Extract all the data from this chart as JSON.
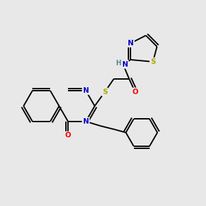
{
  "background_color": "#e8e8e8",
  "atom_colors": {
    "C": "#000000",
    "N": "#0000cc",
    "O": "#ff0000",
    "S": "#aaaa00",
    "H": "#5a8a8a"
  },
  "figsize": [
    3.0,
    3.0
  ],
  "dpi": 100,
  "lw": 1.4,
  "fontsize": 7.5
}
